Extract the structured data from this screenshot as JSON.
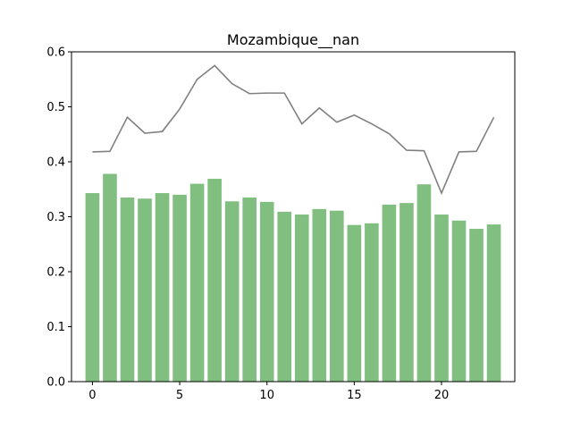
{
  "chart_data": {
    "type": "bar",
    "title": "Mozambique__nan",
    "xlabel": "",
    "ylabel": "",
    "xlim": [
      -1.2,
      24.2
    ],
    "ylim": [
      0.0,
      0.6
    ],
    "x": [
      0,
      1,
      2,
      3,
      4,
      5,
      6,
      7,
      8,
      9,
      10,
      11,
      12,
      13,
      14,
      15,
      16,
      17,
      18,
      19,
      20,
      21,
      22,
      23
    ],
    "xticks": [
      0,
      5,
      10,
      15,
      20
    ],
    "yticks": [
      0.0,
      0.1,
      0.2,
      0.3,
      0.4,
      0.5,
      0.6
    ],
    "xtick_labels": [
      "0",
      "5",
      "10",
      "15",
      "20"
    ],
    "ytick_labels": [
      "0.0",
      "0.1",
      "0.2",
      "0.3",
      "0.4",
      "0.5",
      "0.6"
    ],
    "grid": false,
    "series": [
      {
        "kind": "bar",
        "color": "#81bf81",
        "values": [
          0.343,
          0.378,
          0.335,
          0.333,
          0.343,
          0.34,
          0.36,
          0.369,
          0.328,
          0.335,
          0.327,
          0.309,
          0.304,
          0.314,
          0.311,
          0.285,
          0.288,
          0.322,
          0.325,
          0.359,
          0.304,
          0.293,
          0.278,
          0.286
        ]
      },
      {
        "kind": "line",
        "color": "#808080",
        "values": [
          0.418,
          0.419,
          0.481,
          0.452,
          0.455,
          0.496,
          0.55,
          0.575,
          0.542,
          0.524,
          0.525,
          0.525,
          0.469,
          0.498,
          0.472,
          0.485,
          0.469,
          0.451,
          0.421,
          0.42,
          0.343,
          0.418,
          0.419,
          0.481
        ]
      }
    ]
  }
}
